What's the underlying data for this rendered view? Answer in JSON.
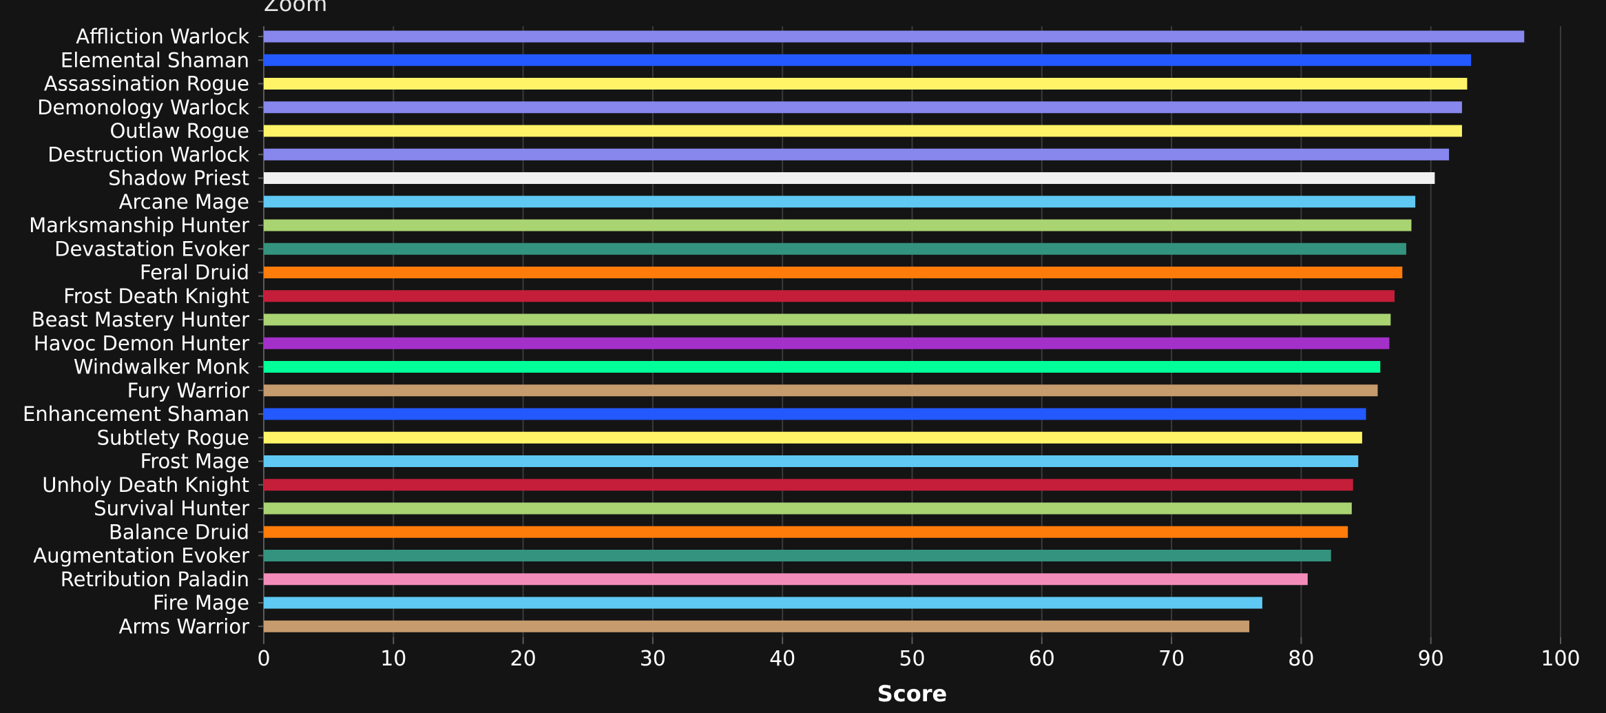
{
  "zoom_label": "Zoom",
  "chart_data": {
    "type": "bar",
    "orientation": "horizontal",
    "title": "",
    "xlabel": "Score",
    "ylabel": "",
    "xlim": [
      0,
      100
    ],
    "xticks": [
      0,
      10,
      20,
      30,
      40,
      50,
      60,
      70,
      80,
      90,
      100
    ],
    "grid": true,
    "categories": [
      "Affliction Warlock",
      "Elemental Shaman",
      "Assassination Rogue",
      "Demonology Warlock",
      "Outlaw Rogue",
      "Destruction Warlock",
      "Shadow Priest",
      "Arcane Mage",
      "Marksmanship Hunter",
      "Devastation Evoker",
      "Feral Druid",
      "Frost Death Knight",
      "Beast Mastery Hunter",
      "Havoc Demon Hunter",
      "Windwalker Monk",
      "Fury Warrior",
      "Enhancement Shaman",
      "Subtlety Rogue",
      "Frost Mage",
      "Unholy Death Knight",
      "Survival Hunter",
      "Balance Druid",
      "Augmentation Evoker",
      "Retribution Paladin",
      "Fire Mage",
      "Arms Warrior"
    ],
    "values": [
      97.2,
      93.1,
      92.8,
      92.4,
      92.4,
      91.4,
      90.3,
      88.8,
      88.5,
      88.1,
      87.8,
      87.2,
      86.9,
      86.8,
      86.1,
      85.9,
      85.0,
      84.7,
      84.4,
      84.0,
      83.9,
      83.6,
      82.3,
      80.5,
      77.0,
      76.0
    ],
    "colors": [
      "#8787ED",
      "#2359FF",
      "#FFF468",
      "#8787ED",
      "#FFF468",
      "#8787ED",
      "#F0F0F0",
      "#5FC9F3",
      "#AAD372",
      "#33937F",
      "#FF7C0A",
      "#C41E3A",
      "#AAD372",
      "#A330C9",
      "#00FF98",
      "#C69B6D",
      "#2359FF",
      "#FFF468",
      "#5FC9F3",
      "#C41E3A",
      "#AAD372",
      "#FF7C0A",
      "#33937F",
      "#F48CBA",
      "#5FC9F3",
      "#C69B6D"
    ],
    "background_color": "#141414",
    "grid_color": "#3a3a3a",
    "text_color": "#ffffff"
  }
}
